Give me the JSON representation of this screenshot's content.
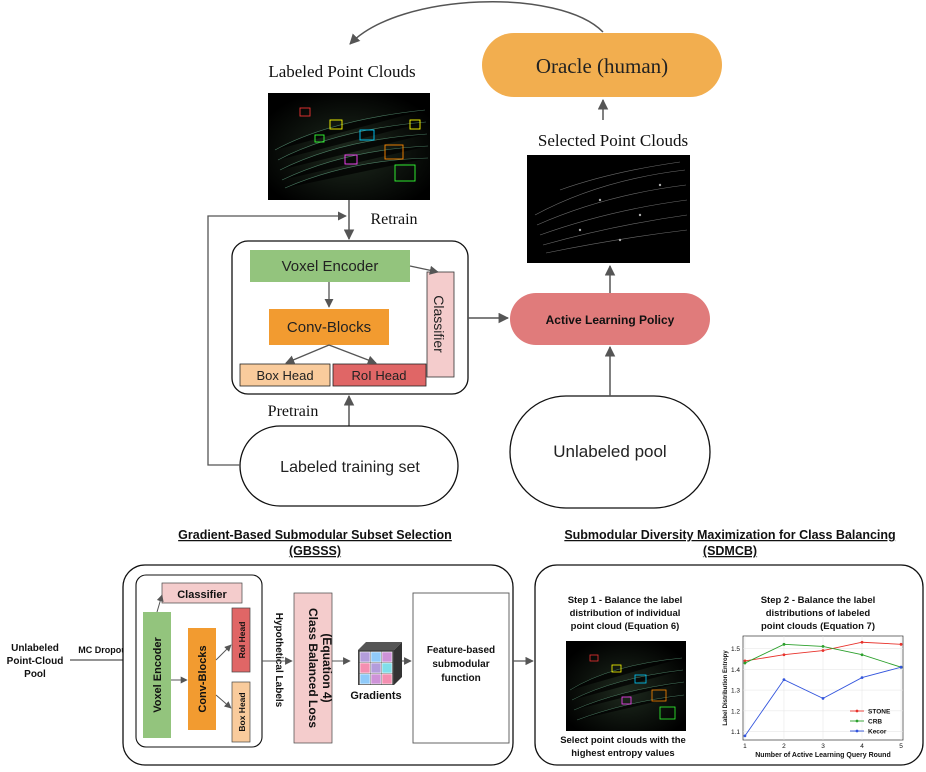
{
  "top": {
    "labeled_point_clouds": "Labeled Point Clouds",
    "oracle": "Oracle (human)",
    "selected_point_clouds": "Selected Point Clouds",
    "retrain": "Retrain",
    "pretrain": "Pretrain",
    "voxel_encoder": "Voxel Encoder",
    "conv_blocks": "Conv-Blocks",
    "classifier": "Classifier",
    "box_head": "Box Head",
    "roi_head": "RoI Head",
    "active_learning_policy": "Active Learning Policy",
    "labeled_training_set": "Labeled training set",
    "unlabeled_pool": "Unlabeled pool"
  },
  "gbsss": {
    "title_line1": "Gradient-Based Submodular Subset Selection",
    "title_line2": "(GBSSS)",
    "input_line1": "Unlabeled",
    "input_line2": "Point-Cloud",
    "input_line3": "Pool",
    "mc_dropout": "MC Dropout",
    "classifier": "Classifier",
    "voxel_encoder": "Voxel Encoder",
    "conv_blocks": "Conv-Blocks",
    "roi_head": "RoI Head",
    "box_head": "Box Head",
    "hypothetical_labels": "Hypothetical Labels",
    "loss_line1": "Class Balanced Loss",
    "loss_line2": "(Equation 4)",
    "gradients": "Gradients",
    "submod_line1": "Feature-based",
    "submod_line2": "submodular",
    "submod_line3": "function"
  },
  "sdmcb": {
    "title_line1": "Submodular Diversity Maximization for Class Balancing",
    "title_line2": "(SDMCB)",
    "step1_line1": "Step 1 - Balance the label",
    "step1_line2": "distribution of individual",
    "step1_line3": "point cloud (Equation 6)",
    "step2_line1": "Step 2 - Balance the label",
    "step2_line2": "distributions of labeled",
    "step2_line3": "point clouds (Equation 7)",
    "select_line1": "Select point clouds with the",
    "select_line2": "highest entropy values"
  },
  "chart_data": {
    "type": "line",
    "xlabel": "Number of Active Learning Query Round",
    "ylabel": "Label Distribution Entropy",
    "x": [
      1,
      2,
      3,
      4,
      5
    ],
    "x_ticks": [
      "1",
      "2",
      "3",
      "4",
      "5"
    ],
    "y_ticks": [
      "1.1",
      "1.2",
      "1.3",
      "1.4",
      "1.5"
    ],
    "xlim": [
      0.95,
      5.05
    ],
    "ylim": [
      1.06,
      1.56
    ],
    "grid": true,
    "legend": "lower-right",
    "series": [
      {
        "name": "STONE",
        "color": "#e8332c",
        "values": [
          1.44,
          1.47,
          1.49,
          1.53,
          1.52
        ]
      },
      {
        "name": "CRB",
        "color": "#2ca02c",
        "values": [
          1.43,
          1.52,
          1.51,
          1.47,
          1.41
        ]
      },
      {
        "name": "Kecor",
        "color": "#3355dd",
        "values": [
          1.08,
          1.35,
          1.26,
          1.36,
          1.41
        ]
      }
    ]
  },
  "colors": {
    "oracle_fill": "#f2ae4f",
    "policy_fill": "#e07b7b",
    "voxel_fill": "#93c47d",
    "conv_fill": "#f29b30",
    "classifier_fill": "#f4cccc",
    "box_head_fill": "#f9cb9c",
    "roi_head_fill": "#e06666"
  }
}
